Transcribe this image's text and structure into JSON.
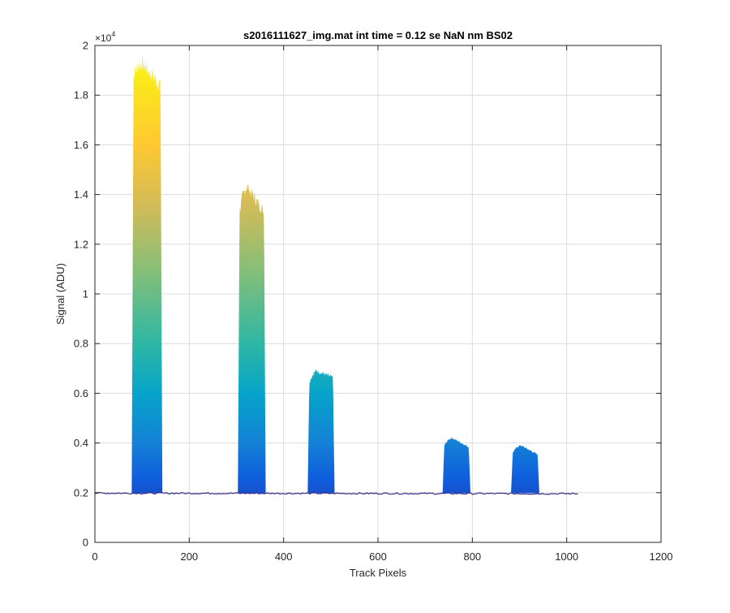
{
  "chart_data": {
    "type": "area",
    "title": "s2016111627_img.mat int time = 0.12 se  NaN nm BS02",
    "xlabel": "Track Pixels",
    "ylabel": "Signal (ADU)",
    "y_exponent_label": "×10",
    "y_exponent_power": "4",
    "xlim": [
      0,
      1200
    ],
    "ylim": [
      0,
      20000
    ],
    "x_ticks": [
      0,
      200,
      400,
      600,
      800,
      1000,
      1200
    ],
    "x_tick_labels": [
      "0",
      "200",
      "400",
      "600",
      "800",
      "1000",
      "1200"
    ],
    "y_ticks": [
      0,
      2000,
      4000,
      6000,
      8000,
      10000,
      12000,
      14000,
      16000,
      18000,
      20000
    ],
    "y_tick_labels": [
      "0",
      "0.2",
      "0.4",
      "0.6",
      "0.8",
      "1",
      "1.2",
      "1.4",
      "1.6",
      "1.8",
      "2"
    ],
    "grid": true,
    "baseline": 1980,
    "x_max_data": 1024,
    "colormap": [
      "#352A87",
      "#0F5CDD",
      "#1481D6",
      "#06A4CA",
      "#2EB7A4",
      "#87BF77",
      "#D1BB59",
      "#FEC832",
      "#F9FB0E"
    ],
    "peaks": [
      {
        "x_start": 78,
        "x_end": 143,
        "top_left": 18600,
        "top_max": 19300,
        "top_right": 18300
      },
      {
        "x_start": 303,
        "x_end": 362,
        "top_left": 13000,
        "top_max": 14300,
        "top_right": 13200
      },
      {
        "x_start": 451,
        "x_end": 508,
        "top_left": 6300,
        "top_max": 6900,
        "top_right": 6600
      },
      {
        "x_start": 737,
        "x_end": 796,
        "top_left": 3800,
        "top_max": 4200,
        "top_right": 3800
      },
      {
        "x_start": 882,
        "x_end": 942,
        "top_left": 3500,
        "top_max": 3900,
        "top_right": 3500
      }
    ]
  }
}
